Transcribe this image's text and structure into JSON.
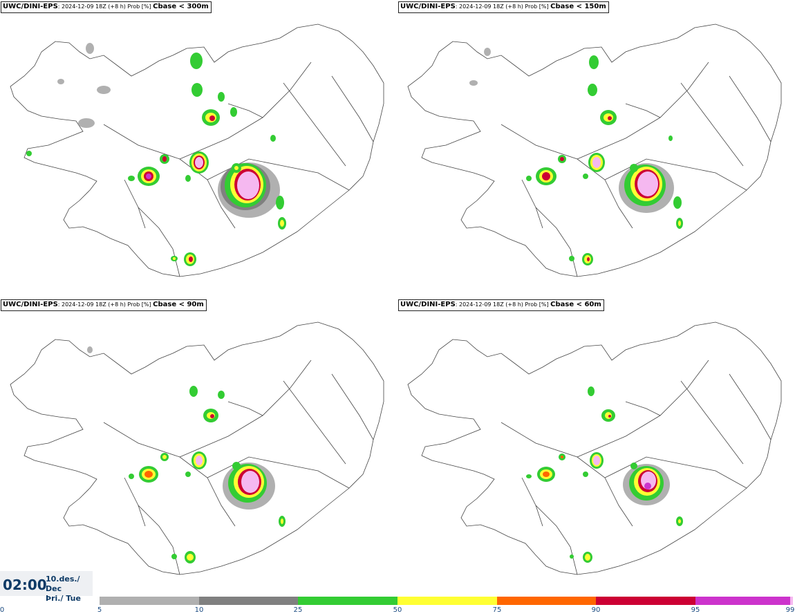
{
  "panels": [
    {
      "model": "UWC/DINI-EPS",
      "meta": ": 2024-12-09 18Z (+8 h) Prob [%] ",
      "threshold": "Cbase < 300m"
    },
    {
      "model": "UWC/DINI-EPS",
      "meta": ": 2024-12-09 18Z (+8 h) Prob [%] ",
      "threshold": "Cbase < 150m"
    },
    {
      "model": "UWC/DINI-EPS",
      "meta": ": 2024-12-09 18Z (+8 h) Prob [%] ",
      "threshold": "Cbase < 90m"
    },
    {
      "model": "UWC/DINI-EPS",
      "meta": ": 2024-12-09 18Z (+8 h) Prob [%] ",
      "threshold": "Cbase < 60m"
    }
  ],
  "time": {
    "clock": "02:00",
    "date": "10.des./ Dec",
    "weekday": "Þri./ Tue"
  },
  "legend": {
    "ticks": [
      "0",
      "5",
      "10",
      "25",
      "50",
      "75",
      "90",
      "95",
      "99"
    ],
    "bins": [
      {
        "from": 5,
        "to": 10,
        "color": "#b0b0b0"
      },
      {
        "from": 10,
        "to": 25,
        "color": "#808080"
      },
      {
        "from": 25,
        "to": 50,
        "color": "#33cc33"
      },
      {
        "from": 50,
        "to": 75,
        "color": "#ffff33"
      },
      {
        "from": 75,
        "to": 90,
        "color": "#ff6600"
      },
      {
        "from": 90,
        "to": 95,
        "color": "#cc0033"
      },
      {
        "from": 95,
        "to": 99,
        "color": "#cc33cc"
      },
      {
        "from": 99,
        "to": 100,
        "color": "#f5b8f0"
      }
    ]
  }
}
